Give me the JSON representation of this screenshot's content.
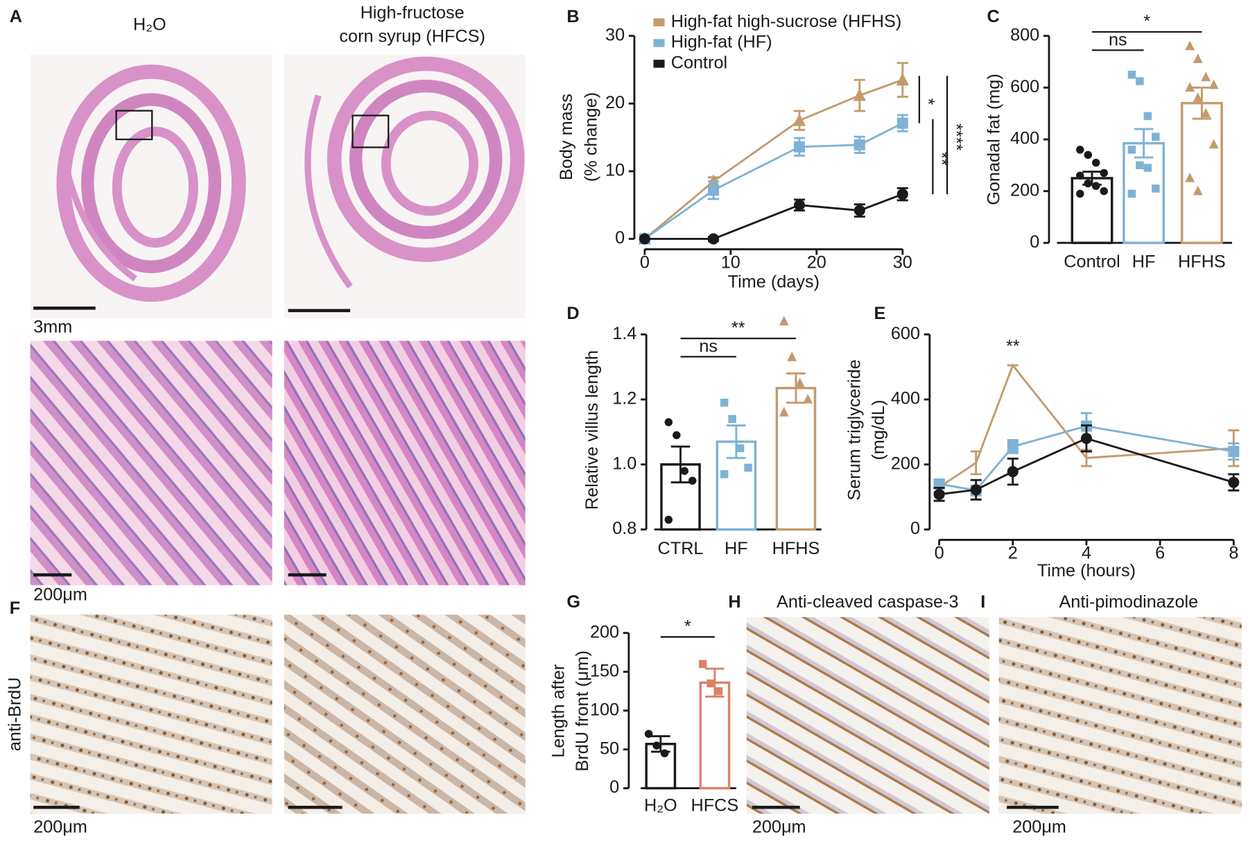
{
  "panel_labels": [
    "A",
    "B",
    "C",
    "D",
    "E",
    "F",
    "G",
    "H",
    "I"
  ],
  "micrographs": {
    "h2o_title": "H₂O",
    "hfcs_title": [
      "High-fructose",
      "corn syrup (HFCS)"
    ],
    "scale_labels": [
      "3mm",
      "200μm",
      "200μm",
      "200μm",
      "200μm"
    ],
    "brdu_label": "anti-BrdU",
    "h_title": "Anti-cleaved caspase-3",
    "i_title": "Anti-pimodinazole"
  },
  "chart_data": [
    {
      "type": "line",
      "xlabel": "Time (days)",
      "ylabel": [
        "Body mass",
        "(% change)"
      ],
      "x": [
        0,
        8,
        18,
        25,
        30
      ],
      "xlim": [
        0,
        30
      ],
      "xticks": [
        0,
        10,
        20,
        30
      ],
      "ylim": [
        0,
        30
      ],
      "yticks": [
        0,
        10,
        20,
        30
      ],
      "series": [
        {
          "name": "High-fat high-sucrose (HFHS)",
          "color": "#c49a6c",
          "marker": "triangle",
          "values": [
            0,
            8.5,
            17.5,
            21.2,
            23.5
          ],
          "errors": [
            0,
            0.6,
            1.4,
            2.3,
            2.5
          ]
        },
        {
          "name": "High-fat (HF)",
          "color": "#7fb2d5",
          "marker": "square",
          "values": [
            0,
            7.2,
            13.6,
            13.9,
            17.1
          ],
          "errors": [
            0,
            1.3,
            1.3,
            1.2,
            1.2
          ]
        },
        {
          "name": "Control",
          "color": "#1a1a1a",
          "marker": "circle",
          "values": [
            0,
            0,
            5,
            4.2,
            6.6
          ],
          "errors": [
            0,
            0.3,
            0.8,
            0.9,
            0.9
          ]
        }
      ],
      "comparisons": [
        {
          "label": "*",
          "groups": [
            "High-fat high-sucrose (HFHS)",
            "High-fat (HF)"
          ]
        },
        {
          "label": "**",
          "groups": [
            "High-fat (HF)",
            "Control"
          ]
        },
        {
          "label": "****",
          "groups": [
            "High-fat high-sucrose (HFHS)",
            "Control"
          ]
        }
      ]
    },
    {
      "type": "bar",
      "ylabel": "Gonadal fat (mg)",
      "categories": [
        "Control",
        "HF",
        "HFHS"
      ],
      "values": [
        250,
        385,
        540
      ],
      "errors": [
        25,
        55,
        60
      ],
      "colors": [
        "#1a1a1a",
        "#7fb2d5",
        "#c49a6c"
      ],
      "markers": [
        "circle",
        "square",
        "triangle"
      ],
      "points": [
        [
          360,
          340,
          310,
          270,
          260,
          230,
          220,
          200,
          190
        ],
        [
          650,
          625,
          490,
          410,
          360,
          300,
          290,
          210,
          190
        ],
        [
          760,
          710,
          640,
          610,
          600,
          560,
          500,
          380,
          250,
          200
        ]
      ],
      "ylim": [
        0,
        800
      ],
      "yticks": [
        0,
        200,
        400,
        600,
        800
      ],
      "comparisons": [
        {
          "label": "ns",
          "groups": [
            "Control",
            "HF"
          ]
        },
        {
          "label": "*",
          "groups": [
            "Control",
            "HFHS"
          ]
        }
      ]
    },
    {
      "type": "bar",
      "ylabel": "Relative villus length",
      "categories": [
        "CTRL",
        "HF",
        "HFHS"
      ],
      "values": [
        1.0,
        1.07,
        1.235
      ],
      "errors": [
        0.055,
        0.05,
        0.045
      ],
      "colors": [
        "#1a1a1a",
        "#7fb2d5",
        "#c49a6c"
      ],
      "markers": [
        "circle",
        "square",
        "triangle"
      ],
      "points": [
        [
          1.13,
          1.09,
          0.98,
          0.95,
          0.83
        ],
        [
          1.19,
          1.14,
          1.05,
          0.99,
          0.97
        ],
        [
          1.44,
          1.33,
          1.25,
          1.2,
          1.16
        ]
      ],
      "ylim": [
        0.8,
        1.4
      ],
      "yticks": [
        0.8,
        {
          "value": 1.0,
          "label": "1.0"
        },
        1.2,
        1.4
      ],
      "comparisons": [
        {
          "label": "ns",
          "groups": [
            "CTRL",
            "HF"
          ]
        },
        {
          "label": "**",
          "groups": [
            "CTRL",
            "HFHS"
          ]
        }
      ]
    },
    {
      "type": "line",
      "xlabel": "Time (hours)",
      "ylabel": [
        "Serum triglyceride",
        "(mg/dL)"
      ],
      "x": [
        0,
        1,
        2,
        4,
        8
      ],
      "xlim": [
        0,
        8
      ],
      "xticks": [
        0,
        2,
        4,
        6,
        8
      ],
      "ylim": [
        0,
        600
      ],
      "yticks": [
        0,
        200,
        400,
        600
      ],
      "series": [
        {
          "color": "#c49a6c",
          "values": [
            130,
            205,
            505,
            220,
            250
          ],
          "errors": [
            15,
            35,
            0,
            25,
            55
          ]
        },
        {
          "color": "#7fb2d5",
          "marker": "square",
          "values": [
            140,
            120,
            255,
            318,
            240
          ],
          "errors": [
            10,
            15,
            20,
            40,
            25
          ]
        },
        {
          "color": "#1a1a1a",
          "marker": "circle",
          "values": [
            108,
            122,
            178,
            280,
            145
          ],
          "errors": [
            20,
            30,
            40,
            40,
            25
          ]
        }
      ],
      "annotations": [
        {
          "label": "**",
          "x": 2
        }
      ]
    },
    {
      "type": "bar",
      "ylabel": [
        "Length after",
        "BrdU front (μm)"
      ],
      "categories": [
        "H₂O",
        "HFCS"
      ],
      "values": [
        57,
        136
      ],
      "errors": [
        10,
        18
      ],
      "colors": [
        "#1a1a1a",
        "#d9826a"
      ],
      "markers": [
        "circle",
        "square"
      ],
      "points": [
        [
          70,
          55,
          45
        ],
        [
          160,
          135,
          125
        ]
      ],
      "ylim": [
        0,
        200
      ],
      "yticks": [
        0,
        50,
        100,
        150,
        200
      ],
      "comparisons": [
        {
          "label": "*",
          "groups": [
            "H₂O",
            "HFCS"
          ]
        }
      ]
    }
  ]
}
